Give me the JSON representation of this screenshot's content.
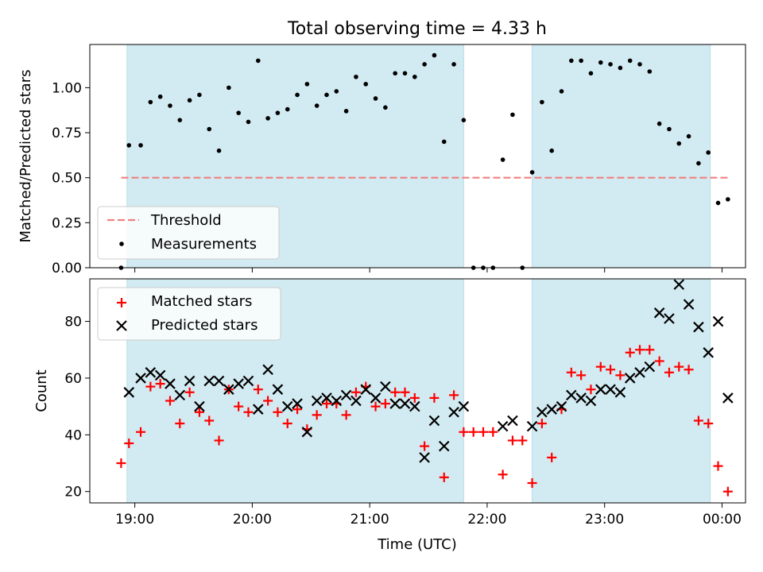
{
  "chart_data": [
    {
      "type": "scatter",
      "title": "Total observing time = 4.33 h",
      "xlabel": "",
      "ylabel": "Matched/Predicted stars",
      "ylim": [
        0,
        1.24
      ],
      "xlim": [
        "18:37",
        "00:12"
      ],
      "yticks": [
        "0.00",
        "0.25",
        "0.50",
        "0.75",
        "1.00"
      ],
      "ytick_values": [
        0,
        0.25,
        0.5,
        0.75,
        1.0
      ],
      "shaded_intervals": [
        [
          "18:56",
          "21:48"
        ],
        [
          "22:23",
          "23:54"
        ]
      ],
      "shade_color": "#add8e6",
      "threshold": {
        "name": "Threshold",
        "y": 0.5,
        "x_range": [
          "18:53",
          "00:03"
        ],
        "color": "#f08080",
        "style": "dashed"
      },
      "legend": {
        "placement": "lower-left",
        "entries": [
          "Threshold",
          "Measurements"
        ]
      },
      "series": [
        {
          "name": "Measurements",
          "marker": "dot",
          "color": "#000000",
          "points": [
            [
              "18:53",
              0.0
            ],
            [
              "18:57",
              0.68
            ],
            [
              "19:03",
              0.68
            ],
            [
              "19:08",
              0.92
            ],
            [
              "19:13",
              0.95
            ],
            [
              "19:18",
              0.9
            ],
            [
              "19:23",
              0.82
            ],
            [
              "19:28",
              0.93
            ],
            [
              "19:33",
              0.96
            ],
            [
              "19:38",
              0.77
            ],
            [
              "19:43",
              0.65
            ],
            [
              "19:48",
              1.0
            ],
            [
              "19:53",
              0.86
            ],
            [
              "19:58",
              0.81
            ],
            [
              "20:03",
              1.15
            ],
            [
              "20:08",
              0.83
            ],
            [
              "20:13",
              0.86
            ],
            [
              "20:18",
              0.88
            ],
            [
              "20:23",
              0.96
            ],
            [
              "20:28",
              1.02
            ],
            [
              "20:33",
              0.9
            ],
            [
              "20:38",
              0.96
            ],
            [
              "20:43",
              0.98
            ],
            [
              "20:48",
              0.87
            ],
            [
              "20:53",
              1.06
            ],
            [
              "20:58",
              1.02
            ],
            [
              "21:03",
              0.94
            ],
            [
              "21:08",
              0.89
            ],
            [
              "21:13",
              1.08
            ],
            [
              "21:18",
              1.08
            ],
            [
              "21:23",
              1.06
            ],
            [
              "21:28",
              1.13
            ],
            [
              "21:33",
              1.18
            ],
            [
              "21:38",
              0.7
            ],
            [
              "21:43",
              1.13
            ],
            [
              "21:48",
              0.82
            ],
            [
              "21:53",
              0.0
            ],
            [
              "21:58",
              0.0
            ],
            [
              "22:03",
              0.0
            ],
            [
              "22:08",
              0.6
            ],
            [
              "22:13",
              0.85
            ],
            [
              "22:18",
              0.0
            ],
            [
              "22:23",
              0.53
            ],
            [
              "22:28",
              0.92
            ],
            [
              "22:33",
              0.65
            ],
            [
              "22:38",
              0.98
            ],
            [
              "22:43",
              1.15
            ],
            [
              "22:48",
              1.15
            ],
            [
              "22:53",
              1.08
            ],
            [
              "22:58",
              1.14
            ],
            [
              "23:03",
              1.13
            ],
            [
              "23:08",
              1.11
            ],
            [
              "23:13",
              1.15
            ],
            [
              "23:18",
              1.13
            ],
            [
              "23:23",
              1.09
            ],
            [
              "23:28",
              0.8
            ],
            [
              "23:33",
              0.77
            ],
            [
              "23:38",
              0.69
            ],
            [
              "23:43",
              0.73
            ],
            [
              "23:48",
              0.58
            ],
            [
              "23:53",
              0.64
            ],
            [
              "23:58",
              0.36
            ],
            [
              "00:03",
              0.38
            ]
          ]
        }
      ]
    },
    {
      "type": "scatter",
      "title": "",
      "xlabel": "Time (UTC)",
      "ylabel": "Count",
      "ylim": [
        16,
        95
      ],
      "xlim": [
        "18:37",
        "00:12"
      ],
      "xticks": [
        "19:00",
        "20:00",
        "21:00",
        "22:00",
        "23:00",
        "00:00"
      ],
      "yticks": [
        "20",
        "40",
        "60",
        "80"
      ],
      "ytick_values": [
        20,
        40,
        60,
        80
      ],
      "shaded_intervals": [
        [
          "18:56",
          "21:48"
        ],
        [
          "22:23",
          "23:54"
        ]
      ],
      "shade_color": "#add8e6",
      "legend": {
        "placement": "top-left",
        "entries": [
          "Matched stars",
          "Predicted stars"
        ]
      },
      "series": [
        {
          "name": "Matched stars",
          "marker": "plus",
          "color": "#ff0000",
          "points": [
            [
              "18:53",
              30
            ],
            [
              "18:57",
              37
            ],
            [
              "19:03",
              41
            ],
            [
              "19:08",
              57
            ],
            [
              "19:13",
              58
            ],
            [
              "19:18",
              52
            ],
            [
              "19:23",
              44
            ],
            [
              "19:28",
              55
            ],
            [
              "19:33",
              48
            ],
            [
              "19:38",
              45
            ],
            [
              "19:43",
              38
            ],
            [
              "19:48",
              56
            ],
            [
              "19:53",
              50
            ],
            [
              "19:58",
              48
            ],
            [
              "20:03",
              56
            ],
            [
              "20:08",
              52
            ],
            [
              "20:13",
              48
            ],
            [
              "20:18",
              44
            ],
            [
              "20:23",
              49
            ],
            [
              "20:28",
              42
            ],
            [
              "20:33",
              47
            ],
            [
              "20:38",
              51
            ],
            [
              "20:43",
              51
            ],
            [
              "20:48",
              47
            ],
            [
              "20:53",
              55
            ],
            [
              "20:58",
              57
            ],
            [
              "21:03",
              50
            ],
            [
              "21:08",
              51
            ],
            [
              "21:13",
              55
            ],
            [
              "21:18",
              55
            ],
            [
              "21:23",
              53
            ],
            [
              "21:28",
              36
            ],
            [
              "21:33",
              53
            ],
            [
              "21:38",
              25
            ],
            [
              "21:43",
              54
            ],
            [
              "21:48",
              41
            ],
            [
              "21:53",
              41
            ],
            [
              "21:58",
              41
            ],
            [
              "22:03",
              41
            ],
            [
              "22:08",
              26
            ],
            [
              "22:13",
              38
            ],
            [
              "22:18",
              38
            ],
            [
              "22:23",
              23
            ],
            [
              "22:28",
              44
            ],
            [
              "22:33",
              32
            ],
            [
              "22:38",
              49
            ],
            [
              "22:43",
              62
            ],
            [
              "22:48",
              61
            ],
            [
              "22:53",
              56
            ],
            [
              "22:58",
              64
            ],
            [
              "23:03",
              63
            ],
            [
              "23:08",
              61
            ],
            [
              "23:13",
              69
            ],
            [
              "23:18",
              70
            ],
            [
              "23:23",
              70
            ],
            [
              "23:28",
              66
            ],
            [
              "23:33",
              62
            ],
            [
              "23:38",
              64
            ],
            [
              "23:43",
              63
            ],
            [
              "23:48",
              45
            ],
            [
              "23:53",
              44
            ],
            [
              "23:58",
              29
            ],
            [
              "00:03",
              20
            ]
          ]
        },
        {
          "name": "Predicted stars",
          "marker": "cross",
          "color": "#000000",
          "points": [
            [
              "18:57",
              55
            ],
            [
              "19:03",
              60
            ],
            [
              "19:08",
              62
            ],
            [
              "19:13",
              61
            ],
            [
              "19:18",
              58
            ],
            [
              "19:23",
              54
            ],
            [
              "19:28",
              59
            ],
            [
              "19:33",
              50
            ],
            [
              "19:38",
              59
            ],
            [
              "19:43",
              59
            ],
            [
              "19:48",
              56
            ],
            [
              "19:53",
              58
            ],
            [
              "19:58",
              59
            ],
            [
              "20:03",
              49
            ],
            [
              "20:08",
              63
            ],
            [
              "20:13",
              56
            ],
            [
              "20:18",
              50
            ],
            [
              "20:23",
              51
            ],
            [
              "20:28",
              41
            ],
            [
              "20:33",
              52
            ],
            [
              "20:38",
              53
            ],
            [
              "20:43",
              52
            ],
            [
              "20:48",
              54
            ],
            [
              "20:53",
              52
            ],
            [
              "20:58",
              56
            ],
            [
              "21:03",
              53
            ],
            [
              "21:08",
              57
            ],
            [
              "21:13",
              51
            ],
            [
              "21:18",
              51
            ],
            [
              "21:23",
              50
            ],
            [
              "21:28",
              32
            ],
            [
              "21:33",
              45
            ],
            [
              "21:38",
              36
            ],
            [
              "21:43",
              48
            ],
            [
              "21:48",
              50
            ],
            [
              "22:08",
              43
            ],
            [
              "22:13",
              45
            ],
            [
              "22:23",
              43
            ],
            [
              "22:28",
              48
            ],
            [
              "22:33",
              49
            ],
            [
              "22:38",
              50
            ],
            [
              "22:43",
              54
            ],
            [
              "22:48",
              53
            ],
            [
              "22:53",
              52
            ],
            [
              "22:58",
              56
            ],
            [
              "23:03",
              56
            ],
            [
              "23:08",
              55
            ],
            [
              "23:13",
              60
            ],
            [
              "23:18",
              62
            ],
            [
              "23:23",
              64
            ],
            [
              "23:28",
              83
            ],
            [
              "23:33",
              81
            ],
            [
              "23:38",
              93
            ],
            [
              "23:43",
              86
            ],
            [
              "23:48",
              78
            ],
            [
              "23:53",
              69
            ],
            [
              "23:58",
              80
            ],
            [
              "00:03",
              53
            ]
          ]
        }
      ]
    }
  ]
}
